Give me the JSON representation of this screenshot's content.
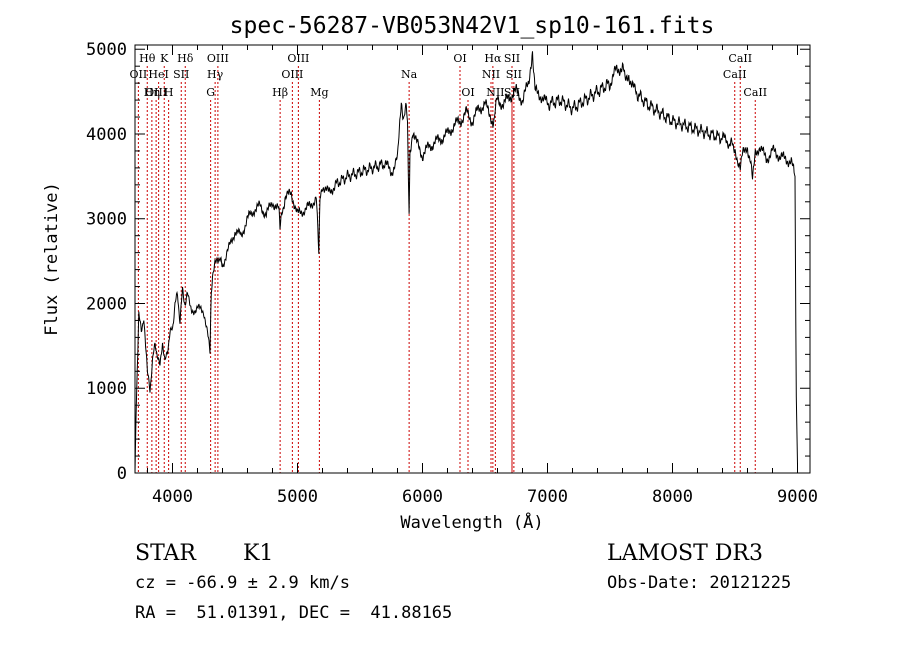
{
  "chart_data": {
    "type": "line",
    "title": "spec-56287-VB053N42V1_sp10-161.fits",
    "xlabel": "Wavelength (Å)",
    "ylabel": "Flux (relative)",
    "xlim": [
      3700,
      9100
    ],
    "ylim": [
      0,
      5050
    ],
    "xticks": [
      4000,
      5000,
      6000,
      7000,
      8000,
      9000
    ],
    "yticks": [
      0,
      1000,
      2000,
      3000,
      4000,
      5000
    ],
    "xtick_labels": [
      "4000",
      "5000",
      "6000",
      "7000",
      "8000",
      "9000"
    ],
    "ytick_labels": [
      "0",
      "1000",
      "2000",
      "3000",
      "4000",
      "5000"
    ],
    "line_color": "#000000",
    "marker_color": "#cc0000",
    "series": [
      {
        "name": "spectrum",
        "x": [
          3700,
          3710,
          3730,
          3750,
          3770,
          3800,
          3820,
          3840,
          3860,
          3880,
          3900,
          3920,
          3940,
          3960,
          3980,
          4000,
          4020,
          4040,
          4060,
          4080,
          4100,
          4120,
          4150,
          4200,
          4250,
          4280,
          4300,
          4310,
          4320,
          4340,
          4360,
          4400,
          4450,
          4500,
          4550,
          4600,
          4650,
          4700,
          4750,
          4800,
          4850,
          4860,
          4900,
          4950,
          5000,
          5050,
          5100,
          5150,
          5170,
          5180,
          5200,
          5250,
          5300,
          5400,
          5500,
          5600,
          5700,
          5750,
          5800,
          5830,
          5850,
          5870,
          5880,
          5890,
          5893,
          5900,
          5920,
          5950,
          6000,
          6050,
          6100,
          6150,
          6200,
          6250,
          6300,
          6350,
          6400,
          6450,
          6500,
          6550,
          6563,
          6580,
          6600,
          6650,
          6700,
          6750,
          6800,
          6850,
          6880,
          6900,
          6950,
          7000,
          7100,
          7200,
          7300,
          7400,
          7500,
          7550,
          7600,
          7620,
          7650,
          7700,
          7800,
          7900,
          8000,
          8100,
          8200,
          8300,
          8400,
          8450,
          8498,
          8520,
          8542,
          8570,
          8600,
          8640,
          8662,
          8700,
          8750,
          8800,
          8850,
          8900,
          8950,
          8980,
          8990,
          9000
        ],
        "y": [
          0,
          800,
          1900,
          1650,
          1850,
          1200,
          950,
          1350,
          1500,
          1400,
          1250,
          1550,
          1300,
          1450,
          1650,
          1700,
          2000,
          2100,
          1800,
          2150,
          2000,
          2100,
          1900,
          1950,
          1900,
          1700,
          1400,
          2100,
          2350,
          2450,
          2550,
          2450,
          2650,
          2850,
          2800,
          3000,
          3100,
          3150,
          3050,
          3200,
          3100,
          2900,
          3250,
          3300,
          3050,
          3100,
          3150,
          3250,
          2600,
          3200,
          3400,
          3300,
          3400,
          3500,
          3550,
          3600,
          3650,
          3550,
          3700,
          4350,
          4200,
          4300,
          4100,
          3300,
          3100,
          3800,
          4000,
          3900,
          3750,
          3850,
          3900,
          3950,
          4000,
          4100,
          4150,
          4250,
          4150,
          4300,
          4350,
          4200,
          4050,
          4300,
          4400,
          4350,
          4450,
          4500,
          4400,
          4600,
          5000,
          4500,
          4450,
          4350,
          4400,
          4300,
          4400,
          4500,
          4600,
          4750,
          4800,
          4650,
          4700,
          4500,
          4350,
          4250,
          4150,
          4100,
          4050,
          4000,
          3950,
          3900,
          3850,
          3700,
          3650,
          3800,
          3850,
          3500,
          3800,
          3850,
          3700,
          3800,
          3750,
          3700,
          3680,
          3500,
          900,
          100
        ]
      }
    ],
    "line_markers": [
      {
        "label": "Hθ",
        "x": 3798,
        "row": 1
      },
      {
        "label": "K",
        "x": 3934,
        "row": 1
      },
      {
        "label": "Hδ",
        "x": 4102,
        "row": 1
      },
      {
        "label": "OII",
        "x": 3727,
        "row": 2
      },
      {
        "label": "HeI",
        "x": 3889,
        "row": 2
      },
      {
        "label": "SII",
        "x": 4070,
        "row": 2
      },
      {
        "label": "OIII",
        "x": 3869,
        "row": 3
      },
      {
        "label": "H",
        "x": 3969,
        "row": 3
      },
      {
        "label": "Hη",
        "x": 3835,
        "row": 3
      },
      {
        "label": "OIII",
        "x": 4363,
        "row": 1
      },
      {
        "label": "Hγ",
        "x": 4341,
        "row": 2
      },
      {
        "label": "G",
        "x": 4305,
        "row": 3
      },
      {
        "label": "OIII",
        "x": 5007,
        "row": 1
      },
      {
        "label": "OIII",
        "x": 4959,
        "row": 2
      },
      {
        "label": "Hβ",
        "x": 4861,
        "row": 3
      },
      {
        "label": "Mg",
        "x": 5175,
        "row": 3
      },
      {
        "label": "Na",
        "x": 5893,
        "row": 2
      },
      {
        "label": "OI",
        "x": 6300,
        "row": 1
      },
      {
        "label": "OI",
        "x": 6364,
        "row": 3
      },
      {
        "label": "Hα",
        "x": 6563,
        "row": 1
      },
      {
        "label": "SII",
        "x": 6716,
        "row": 1
      },
      {
        "label": "NII",
        "x": 6548,
        "row": 2
      },
      {
        "label": "SII",
        "x": 6731,
        "row": 2
      },
      {
        "label": "NII",
        "x": 6583,
        "row": 3
      },
      {
        "label": "SII",
        "x": 6716,
        "row": 3
      },
      {
        "label": "CaII",
        "x": 8542,
        "row": 1
      },
      {
        "label": "CaII",
        "x": 8498,
        "row": 2
      },
      {
        "label": "CaII",
        "x": 8662,
        "row": 3
      }
    ]
  },
  "info": {
    "object_class": "STAR",
    "subclass": "K1",
    "survey": "LAMOST DR3",
    "redshift_line": "cz = -66.9 ± 2.9 km/s",
    "obs_date": "Obs-Date: 20121225",
    "coords_line": "RA =  51.01391, DEC =  41.88165"
  }
}
